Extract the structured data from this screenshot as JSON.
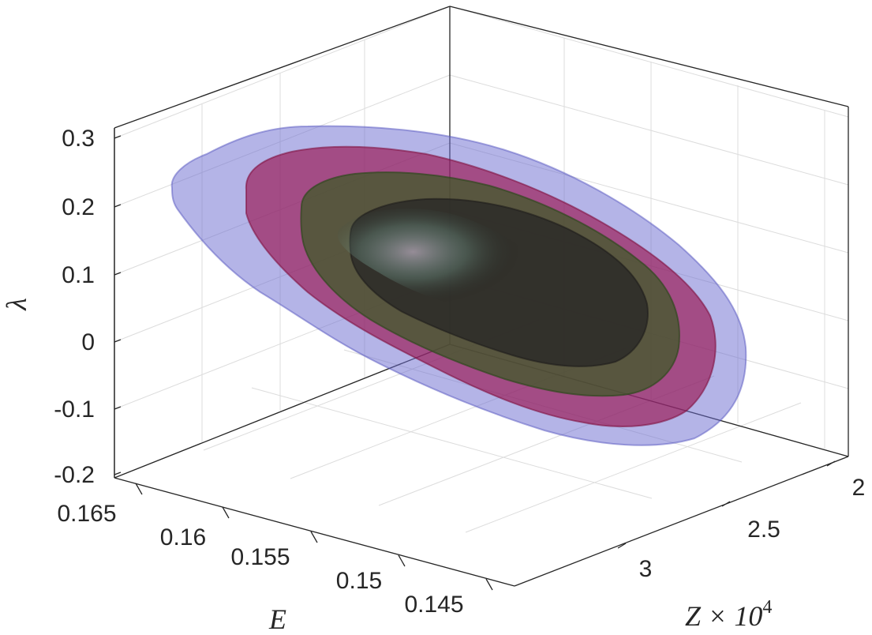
{
  "chart_data": {
    "type": "isosurface-3d",
    "title": "",
    "axes": {
      "y": {
        "label": "λ",
        "ticks": [
          "-0.2",
          "-0.1",
          "0",
          "0.1",
          "0.2",
          "0.3"
        ],
        "range": [
          -0.2,
          0.3
        ]
      },
      "e": {
        "label": "E",
        "ticks": [
          "0.165",
          "0.16",
          "0.155",
          "0.15",
          "0.145"
        ],
        "range": [
          0.145,
          0.165
        ]
      },
      "z": {
        "label": "Z × 10",
        "label_exp": "4",
        "ticks": [
          "3",
          "2.5",
          "2"
        ],
        "range": [
          2,
          3
        ]
      }
    },
    "grid": true,
    "surfaces": [
      {
        "color": "#6a6ad0",
        "opacity": 0.5
      },
      {
        "color": "#9a1450",
        "opacity": 0.65
      },
      {
        "color": "#3f5a28",
        "opacity": 0.75
      },
      {
        "color": "#2c2a28",
        "opacity": 0.85
      }
    ]
  }
}
